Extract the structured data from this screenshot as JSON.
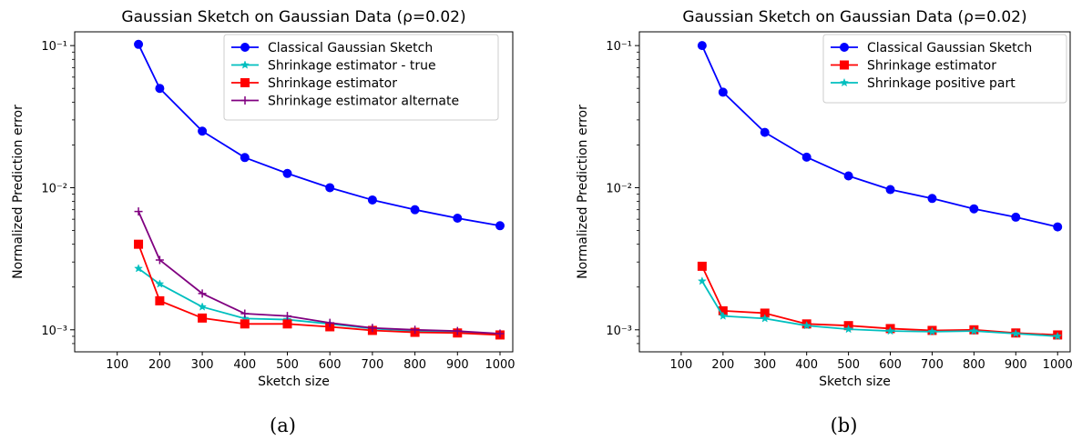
{
  "chart_data": [
    {
      "type": "line",
      "title": "Gaussian Sketch on Gaussian Data (ρ=0.02)",
      "caption": "(a)",
      "xlabel": "Sketch size",
      "ylabel": "Normalized Prediction error",
      "yscale": "log",
      "xlim": [
        0,
        1030
      ],
      "ylim": [
        0.0007,
        0.125
      ],
      "xticks": [
        100,
        200,
        300,
        400,
        500,
        600,
        700,
        800,
        900,
        1000
      ],
      "xtick_labels": [
        "100",
        "200",
        "300",
        "400",
        "500",
        "600",
        "700",
        "800",
        "900",
        "1000"
      ],
      "yticks": [
        0.001,
        0.01,
        0.1
      ],
      "ytick_labels": [
        "10⁻³",
        "10⁻²",
        "10⁻¹"
      ],
      "grid": false,
      "legend_position": "top-right",
      "x": [
        150,
        200,
        300,
        400,
        500,
        600,
        700,
        800,
        900,
        1000
      ],
      "series": [
        {
          "name": "Classical Gaussian Sketch",
          "color": "#0000ff",
          "marker": "circle",
          "values": [
            0.102,
            0.05,
            0.025,
            0.0163,
            0.0126,
            0.01,
            0.0082,
            0.007,
            0.0061,
            0.0054
          ]
        },
        {
          "name": "Shrinkage estimator - true",
          "color": "#00bfbf",
          "marker": "star",
          "values": [
            0.0027,
            0.0021,
            0.00145,
            0.0012,
            0.00118,
            0.0011,
            0.00102,
            0.00098,
            0.00096,
            0.00093
          ]
        },
        {
          "name": "Shrinkage estimator",
          "color": "#ff0000",
          "marker": "square",
          "values": [
            0.004,
            0.0016,
            0.00121,
            0.0011,
            0.0011,
            0.00105,
            0.00099,
            0.00096,
            0.00095,
            0.00092
          ]
        },
        {
          "name": "Shrinkage estimator alternate",
          "color": "#800080",
          "marker": "plus",
          "values": [
            0.0068,
            0.0031,
            0.0018,
            0.0013,
            0.00125,
            0.00112,
            0.00103,
            0.001,
            0.00098,
            0.00094
          ]
        }
      ]
    },
    {
      "type": "line",
      "title": "Gaussian Sketch on Gaussian Data (ρ=0.02)",
      "caption": "(b)",
      "xlabel": "Sketch size",
      "ylabel": "Normalized Prediction error",
      "yscale": "log",
      "xlim": [
        0,
        1030
      ],
      "ylim": [
        0.0007,
        0.125
      ],
      "xticks": [
        100,
        200,
        300,
        400,
        500,
        600,
        700,
        800,
        900,
        1000
      ],
      "xtick_labels": [
        "100",
        "200",
        "300",
        "400",
        "500",
        "600",
        "700",
        "800",
        "900",
        "1000"
      ],
      "yticks": [
        0.001,
        0.01,
        0.1
      ],
      "ytick_labels": [
        "10⁻³",
        "10⁻²",
        "10⁻¹"
      ],
      "grid": false,
      "legend_position": "top-right",
      "x": [
        150,
        200,
        300,
        400,
        500,
        600,
        700,
        800,
        900,
        1000
      ],
      "series": [
        {
          "name": "Classical Gaussian Sketch",
          "color": "#0000ff",
          "marker": "circle",
          "values": [
            0.1,
            0.047,
            0.0245,
            0.0164,
            0.0121,
            0.0097,
            0.0084,
            0.0071,
            0.0062,
            0.0053
          ]
        },
        {
          "name": "Shrinkage estimator",
          "color": "#ff0000",
          "marker": "square",
          "values": [
            0.0028,
            0.00136,
            0.00131,
            0.0011,
            0.00107,
            0.00102,
            0.00099,
            0.001,
            0.00095,
            0.00092
          ]
        },
        {
          "name": "Shrinkage positive part",
          "color": "#00bfbf",
          "marker": "star",
          "values": [
            0.0022,
            0.00125,
            0.0012,
            0.00107,
            0.00101,
            0.00098,
            0.00097,
            0.00098,
            0.00094,
            0.0009
          ]
        }
      ]
    }
  ]
}
